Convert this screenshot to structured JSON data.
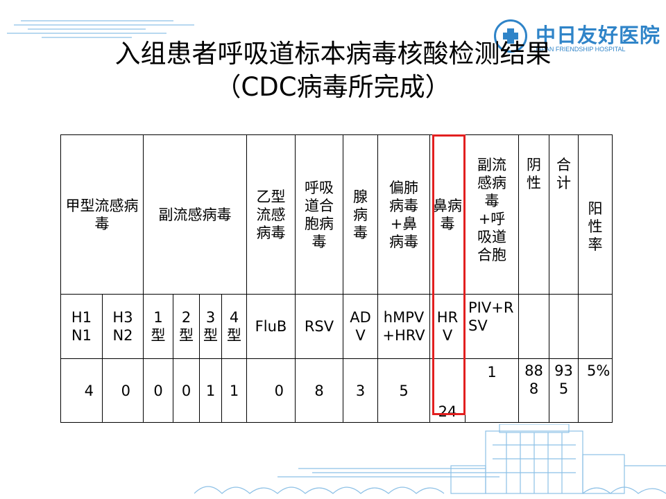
{
  "title": {
    "line1": "入组患者呼吸道标本病毒核酸检测结果",
    "line2": "（CDC病毒所完成）"
  },
  "logo": {
    "chinese": "中日友好医院",
    "english": "JAPAN FRIENDSHIP HOSPITAL",
    "icon": "hospital-cross-emblem"
  },
  "table": {
    "groups": {
      "flu_a": "甲型流感病毒",
      "paraflu": "副流感病毒",
      "flu_b": "乙型流感病毒",
      "rsv": "呼吸道合胞病毒",
      "adv": "腺病毒",
      "hmpv_hrv": "偏肺病毒+鼻病毒",
      "hrv": "鼻病毒",
      "piv_rsv": "副流感病毒+呼吸道合胞",
      "negative": "阴性",
      "total": "合计",
      "positive_rate": "阳性率"
    },
    "codes": {
      "h1n1": "H1N1",
      "h3n2": "H3N2",
      "p1": "1型",
      "p2": "2型",
      "p3": "3型",
      "p4": "4型",
      "flub": "FluB",
      "rsv": "RSV",
      "adv": "ADV",
      "hmpv_hrv": "hMPV+HRV",
      "hrv": "HRV",
      "piv_rsv": "PIV+RSV",
      "negative": "",
      "total": "",
      "positive_rate": ""
    },
    "counts": {
      "h1n1": "4",
      "h3n2": "0",
      "p1": "0",
      "p2": "0",
      "p3": "1",
      "p4": "1",
      "flub": "0",
      "rsv": "8",
      "adv": "3",
      "hmpv_hrv": "5",
      "hrv": "24",
      "piv_rsv": "1",
      "negative": "888",
      "total": "935",
      "positive_rate": "5%"
    }
  },
  "colors": {
    "accent_blue": "#2f84c8",
    "highlight_red": "#e21f1f"
  }
}
